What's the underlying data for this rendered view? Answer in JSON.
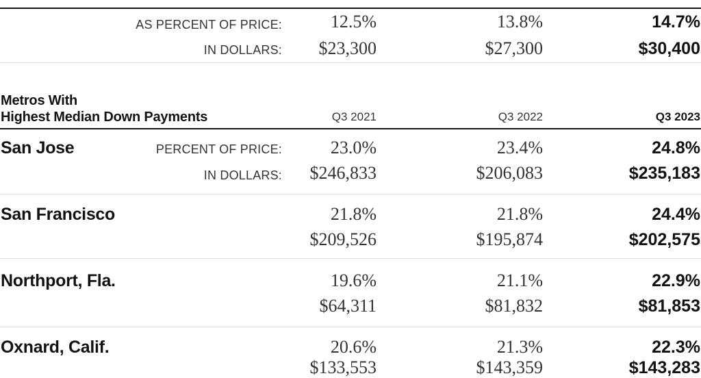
{
  "top": {
    "percent_label": "AS PERCENT OF PRICE:",
    "dollars_label": "IN DOLLARS:",
    "percent": [
      "12.5%",
      "13.8%",
      "14.7%"
    ],
    "dollars": [
      "$23,300",
      "$27,300",
      "$30,400"
    ]
  },
  "metros_section": {
    "title_line1": "Metros With",
    "title_line2": "Highest  Median Down Payments",
    "quarters": [
      "Q3 2021",
      "Q3 2022",
      "Q3 2023"
    ],
    "percent_label": "PERCENT OF PRICE:",
    "dollars_label": "IN DOLLARS:",
    "rows": [
      {
        "name": "San Jose",
        "percent": [
          "23.0%",
          "23.4%",
          "24.8%"
        ],
        "dollars": [
          "$246,833",
          "$206,083",
          "$235,183"
        ]
      },
      {
        "name": "San Francisco",
        "percent": [
          "21.8%",
          "21.8%",
          "24.4%"
        ],
        "dollars": [
          "$209,526",
          "$195,874",
          "$202,575"
        ]
      },
      {
        "name": "Northport, Fla.",
        "percent": [
          "19.6%",
          "21.1%",
          "22.9%"
        ],
        "dollars": [
          "$64,311",
          "$81,832",
          "$81,853"
        ]
      },
      {
        "name": "Oxnard, Calif.",
        "percent": [
          "20.6%",
          "21.3%",
          "22.3%"
        ],
        "dollars": [
          "$133,553",
          "$143,359",
          "$143,283"
        ]
      }
    ]
  }
}
